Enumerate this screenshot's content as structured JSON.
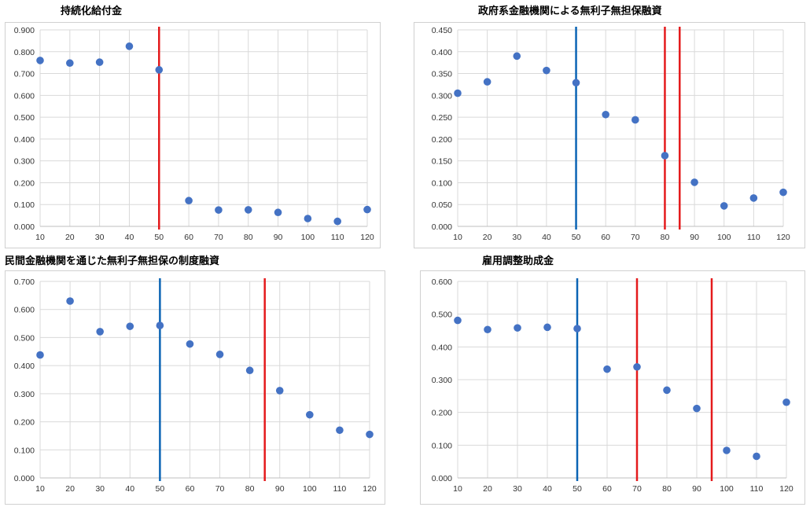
{
  "colors": {
    "point": "#4472c4",
    "vline_blue": "#0b64b4",
    "vline_red": "#e41a1c",
    "grid": "#d9d9d9",
    "axis": "#bfbfbf"
  },
  "chart_data": [
    {
      "type": "scatter",
      "title": "持続化給付金",
      "x": [
        10,
        20,
        30,
        40,
        50,
        60,
        70,
        80,
        90,
        100,
        110,
        120
      ],
      "y": [
        0.76,
        0.748,
        0.752,
        0.825,
        0.717,
        0.118,
        0.075,
        0.076,
        0.064,
        0.036,
        0.023,
        0.077
      ],
      "xlim": [
        10,
        120
      ],
      "ylim": [
        0,
        0.9
      ],
      "yticks": [
        "0.000",
        "0.100",
        "0.200",
        "0.300",
        "0.400",
        "0.500",
        "0.600",
        "0.700",
        "0.800",
        "0.900"
      ],
      "xticks": [
        "10",
        "20",
        "30",
        "40",
        "50",
        "60",
        "70",
        "80",
        "90",
        "100",
        "110",
        "120"
      ],
      "vlines": [
        {
          "x": 50,
          "color": "red"
        }
      ],
      "grid": true,
      "xlabel": "",
      "ylabel": ""
    },
    {
      "type": "scatter",
      "title": "政府系金融機関による無利子無担保融資",
      "x": [
        10,
        20,
        30,
        40,
        50,
        60,
        70,
        80,
        90,
        100,
        110,
        120
      ],
      "y": [
        0.305,
        0.331,
        0.39,
        0.357,
        0.329,
        0.256,
        0.244,
        0.162,
        0.101,
        0.047,
        0.065,
        0.078
      ],
      "xlim": [
        10,
        120
      ],
      "ylim": [
        0,
        0.45
      ],
      "yticks": [
        "0.000",
        "0.050",
        "0.100",
        "0.150",
        "0.200",
        "0.250",
        "0.300",
        "0.350",
        "0.400",
        "0.450"
      ],
      "xticks": [
        "10",
        "20",
        "30",
        "40",
        "50",
        "60",
        "70",
        "80",
        "90",
        "100",
        "110",
        "120"
      ],
      "vlines": [
        {
          "x": 50,
          "color": "blue"
        },
        {
          "x": 80,
          "color": "red"
        },
        {
          "x": 85,
          "color": "red"
        }
      ],
      "grid": true,
      "xlabel": "",
      "ylabel": ""
    },
    {
      "type": "scatter",
      "title": "民間金融機関を通じた無利子無担保の制度融資",
      "x": [
        10,
        20,
        30,
        40,
        50,
        60,
        70,
        80,
        90,
        100,
        110,
        120
      ],
      "y": [
        0.438,
        0.63,
        0.521,
        0.54,
        0.543,
        0.477,
        0.44,
        0.383,
        0.311,
        0.225,
        0.17,
        0.155
      ],
      "xlim": [
        10,
        120
      ],
      "ylim": [
        0,
        0.7
      ],
      "yticks": [
        "0.000",
        "0.100",
        "0.200",
        "0.300",
        "0.400",
        "0.500",
        "0.600",
        "0.700"
      ],
      "xticks": [
        "10",
        "20",
        "30",
        "40",
        "50",
        "60",
        "70",
        "80",
        "90",
        "100",
        "110",
        "120"
      ],
      "vlines": [
        {
          "x": 50,
          "color": "blue"
        },
        {
          "x": 85,
          "color": "red"
        }
      ],
      "grid": true,
      "xlabel": "",
      "ylabel": ""
    },
    {
      "type": "scatter",
      "title": "雇用調整助成金",
      "x": [
        10,
        20,
        30,
        40,
        50,
        60,
        70,
        80,
        90,
        100,
        110,
        120
      ],
      "y": [
        0.481,
        0.453,
        0.458,
        0.46,
        0.456,
        0.332,
        0.339,
        0.268,
        0.212,
        0.084,
        0.066,
        0.231
      ],
      "xlim": [
        10,
        120
      ],
      "ylim": [
        0,
        0.6
      ],
      "yticks": [
        "0.000",
        "0.100",
        "0.200",
        "0.300",
        "0.400",
        "0.500",
        "0.600"
      ],
      "xticks": [
        "10",
        "20",
        "30",
        "40",
        "50",
        "60",
        "70",
        "80",
        "90",
        "100",
        "110",
        "120"
      ],
      "vlines": [
        {
          "x": 50,
          "color": "blue"
        },
        {
          "x": 70,
          "color": "red"
        },
        {
          "x": 95,
          "color": "red"
        }
      ],
      "grid": true,
      "xlabel": "",
      "ylabel": ""
    }
  ]
}
